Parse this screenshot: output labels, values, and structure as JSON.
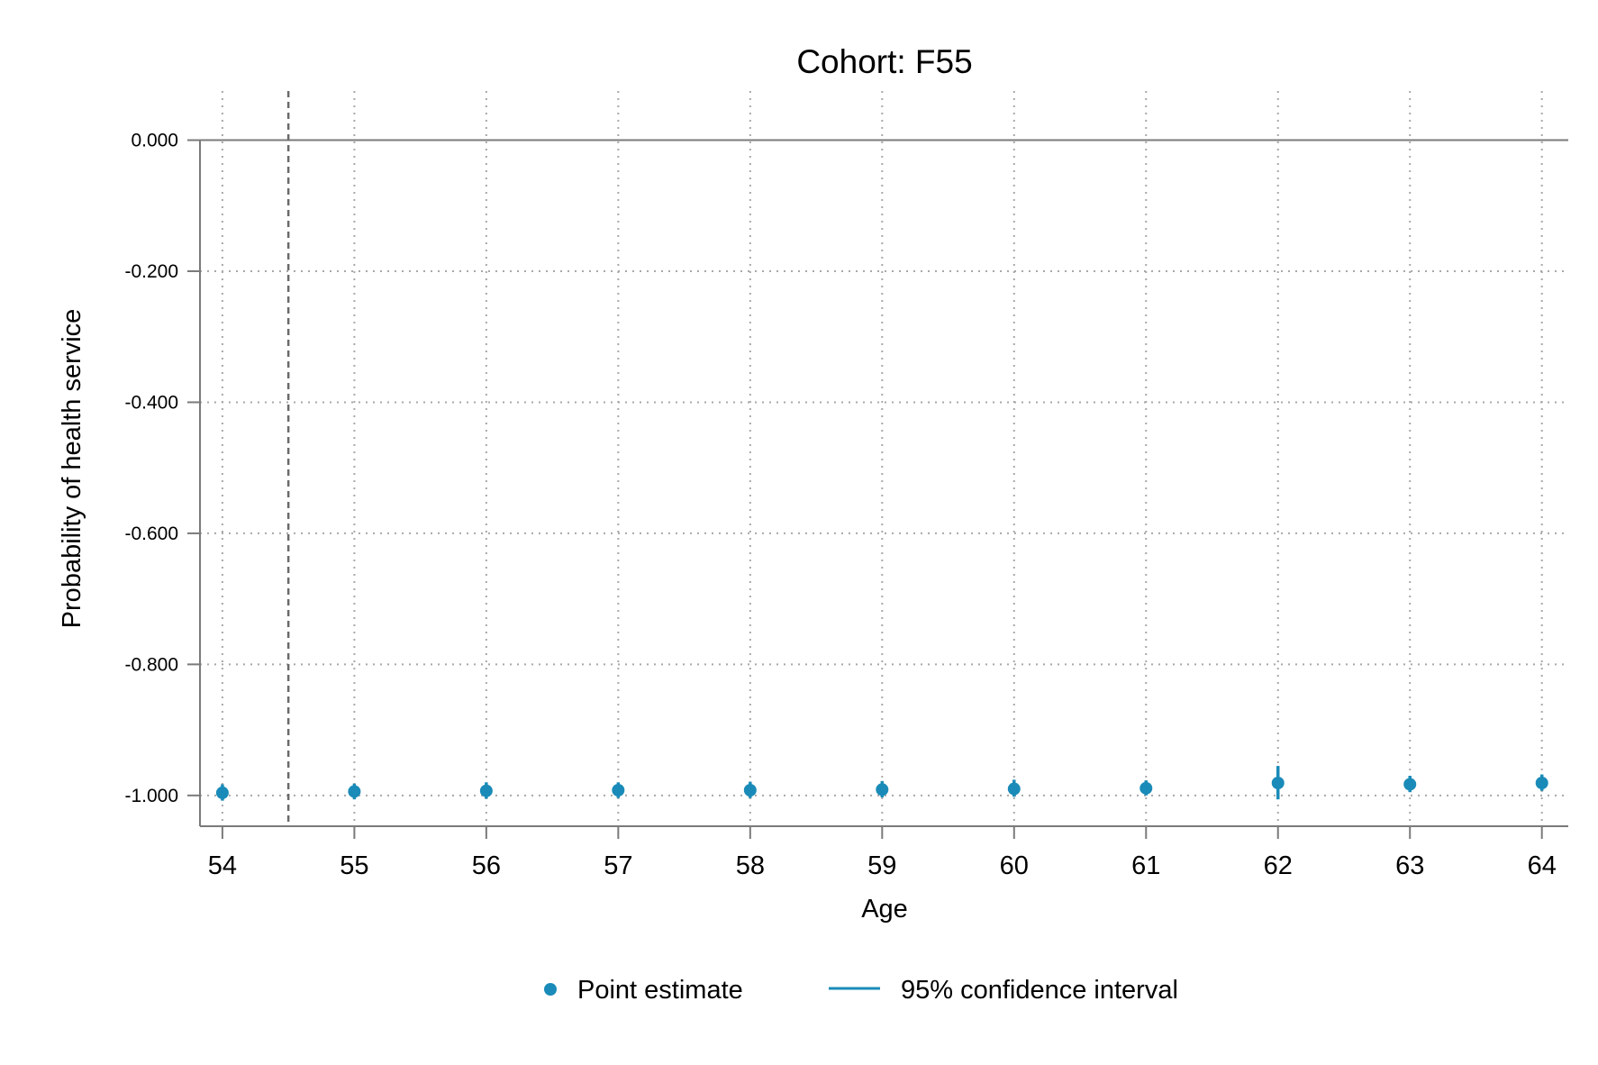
{
  "chart_data": {
    "type": "scatter",
    "title": "Cohort: F55",
    "xlabel": "Age",
    "ylabel": "Probability of health service",
    "x_ticks": [
      "54",
      "55",
      "56",
      "57",
      "58",
      "59",
      "60",
      "61",
      "62",
      "63",
      "64"
    ],
    "y_ticks": [
      "0.000",
      "-0.200",
      "-0.400",
      "-0.600",
      "-0.800",
      "-1.000"
    ],
    "xlim": [
      53.83,
      64.2
    ],
    "ylim": [
      -1.047,
      0.075
    ],
    "grid": true,
    "reference_lines": {
      "vertical_dashed_x": 54.5,
      "horizontal_solid_y": 0
    },
    "x": [
      54,
      55,
      56,
      57,
      58,
      59,
      60,
      61,
      62,
      63,
      64
    ],
    "series": [
      {
        "name": "Point estimate",
        "marker": "circle",
        "color": "#1a8bb8",
        "values": [
          -0.996,
          -0.994,
          -0.993,
          -0.992,
          -0.992,
          -0.991,
          -0.99,
          -0.989,
          -0.981,
          -0.983,
          -0.981
        ]
      }
    ],
    "confidence_interval": {
      "name": "95% confidence interval",
      "color": "#1a8bb8",
      "lower": [
        -1.008,
        -1.006,
        -1.005,
        -1.004,
        -1.004,
        -1.003,
        -1.002,
        -1.0,
        -1.006,
        -0.995,
        -0.993
      ],
      "upper": [
        -0.983,
        -0.982,
        -0.98,
        -0.98,
        -0.979,
        -0.978,
        -0.976,
        -0.977,
        -0.955,
        -0.97,
        -0.968
      ]
    },
    "legend": {
      "position": "bottom",
      "items": [
        "Point estimate",
        "95% confidence interval"
      ]
    }
  }
}
